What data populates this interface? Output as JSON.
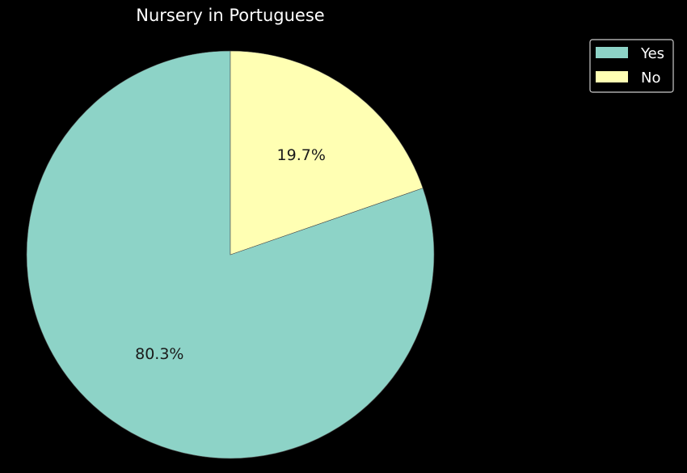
{
  "chart_data": {
    "type": "pie",
    "title": "Nursery in Portuguese",
    "categories": [
      "Yes",
      "No"
    ],
    "values": [
      80.3,
      19.7
    ],
    "value_labels": [
      "80.3%",
      "19.7%"
    ],
    "colors": [
      "#8dd3c7",
      "#ffffb3"
    ],
    "start_angle_deg": 90,
    "counterclockwise": true,
    "legend_position": "top-right",
    "legend": [
      "Yes",
      "No"
    ]
  },
  "theme": {
    "background": "#000000",
    "text": "#ffffff",
    "edge": "#4a4a4a",
    "legend_border": "#cccccc"
  }
}
